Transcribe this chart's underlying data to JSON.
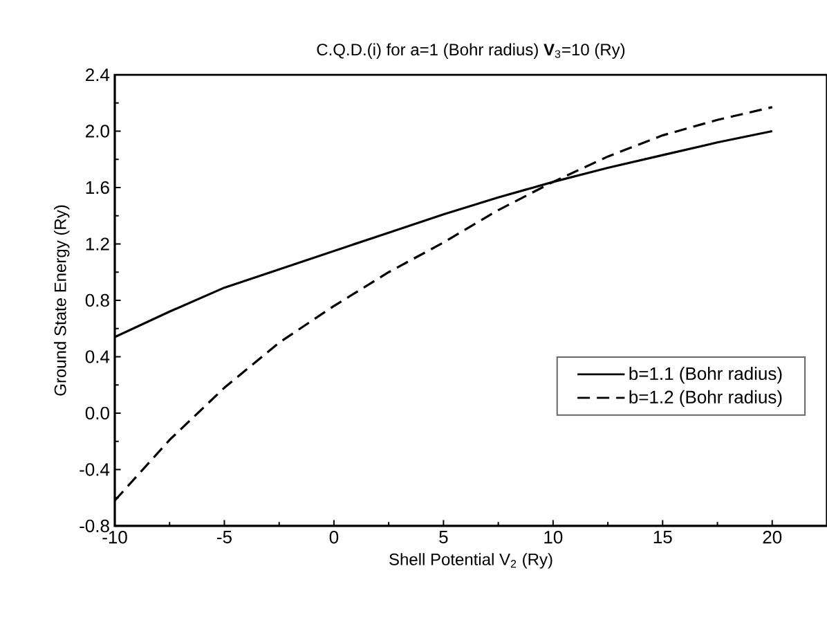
{
  "chart_data": {
    "type": "line",
    "title": "C.Q.D.(i) for a=1 (Bohr radius) **V**$_{3}$=10 (Ry)",
    "xlabel": "Shell Potential V$_{2}$ (Ry)",
    "ylabel": "Ground State Energy (Ry)",
    "x": [
      -10,
      -7.5,
      -5,
      -2.5,
      0,
      2.5,
      5,
      7.5,
      10,
      12.5,
      15,
      17.5,
      20
    ],
    "series": [
      {
        "name": "b=1.1 (Bohr radius)",
        "color": "#000000",
        "line_style": "solid",
        "values": [
          0.54,
          0.72,
          0.89,
          1.02,
          1.15,
          1.28,
          1.41,
          1.53,
          1.64,
          1.74,
          1.83,
          1.92,
          2.0
        ]
      },
      {
        "name": "b=1.2 (Bohr radius)",
        "color": "#000000",
        "line_style": "dashed",
        "values": [
          -0.62,
          -0.19,
          0.18,
          0.5,
          0.76,
          1.0,
          1.21,
          1.44,
          1.64,
          1.82,
          1.97,
          2.08,
          2.17
        ]
      }
    ],
    "xlim": [
      -10,
      22.5
    ],
    "ylim": [
      -0.8,
      2.4
    ],
    "xticks": [
      -10,
      -5,
      0,
      5,
      10,
      15,
      20
    ],
    "yticks": [
      {
        "value": -0.8,
        "label": "-0.8"
      },
      {
        "value": -0.4,
        "label": "-0.4"
      },
      {
        "value": 0,
        "label": "0.0"
      },
      {
        "value": 0.4,
        "label": "0.4"
      },
      {
        "value": 0.8,
        "label": "0.8"
      },
      {
        "value": 1.2,
        "label": "1.2"
      },
      {
        "value": 1.6,
        "label": "1.6"
      },
      {
        "value": 2.0,
        "label": "2.0"
      },
      {
        "value": 2.4,
        "label": "2.4"
      }
    ],
    "grid": false,
    "legend": "right",
    "marker": "none"
  }
}
